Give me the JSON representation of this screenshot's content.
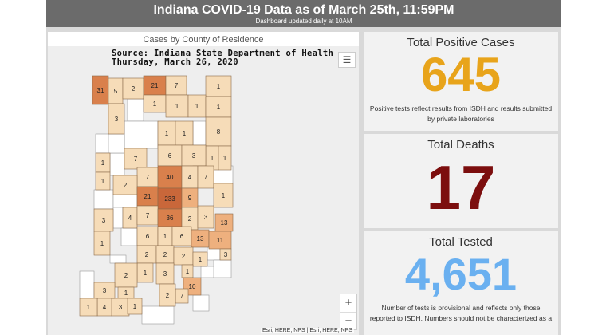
{
  "header": {
    "title": "Indiana COVID-19 Data as of March 25th, 11:59PM",
    "subtitle": "Dashboard updated daily at 10AM"
  },
  "map": {
    "title": "Cases by County of Residence",
    "source_line1": "Source: Indiana State Department of Health",
    "source_line2": "Thursday, March 26, 2020",
    "attribution": "Esri, HERE, NPS | Esri, HERE, NPS",
    "zoom_in": "+",
    "zoom_out": "−",
    "list_icon": "☰",
    "county_labels": [
      {
        "id": "lake",
        "value": "31"
      },
      {
        "id": "porter",
        "value": "5"
      },
      {
        "id": "laporte",
        "value": "2"
      },
      {
        "id": "st-joseph",
        "value": "21"
      },
      {
        "id": "elkhart",
        "value": "7"
      },
      {
        "id": "steuben",
        "value": "1"
      },
      {
        "id": "kosciusko",
        "value": "1"
      },
      {
        "id": "marshall",
        "value": "1"
      },
      {
        "id": "noble",
        "value": "1"
      },
      {
        "id": "dekalb",
        "value": "1"
      },
      {
        "id": "allen",
        "value": "8"
      },
      {
        "id": "jasper",
        "value": "3"
      },
      {
        "id": "adams",
        "value": "1"
      },
      {
        "id": "wells",
        "value": "1"
      },
      {
        "id": "cass",
        "value": "1"
      },
      {
        "id": "miami",
        "value": "1"
      },
      {
        "id": "howard",
        "value": "6"
      },
      {
        "id": "delaware",
        "value": "3"
      },
      {
        "id": "jay",
        "value": "1"
      },
      {
        "id": "tippecanoe",
        "value": "7"
      },
      {
        "id": "benton",
        "value": "1"
      },
      {
        "id": "warren",
        "value": "1"
      },
      {
        "id": "boone",
        "value": "7"
      },
      {
        "id": "montgomery",
        "value": "2"
      },
      {
        "id": "hamilton",
        "value": "40"
      },
      {
        "id": "madison",
        "value": "4"
      },
      {
        "id": "henry",
        "value": "7"
      },
      {
        "id": "hendricks",
        "value": "21"
      },
      {
        "id": "marion",
        "value": "233"
      },
      {
        "id": "hancock",
        "value": "9"
      },
      {
        "id": "wayne",
        "value": "1"
      },
      {
        "id": "vigo",
        "value": "3"
      },
      {
        "id": "putnam",
        "value": "4"
      },
      {
        "id": "morgan",
        "value": "7"
      },
      {
        "id": "johnson",
        "value": "36"
      },
      {
        "id": "shelby",
        "value": "2"
      },
      {
        "id": "rush",
        "value": "3"
      },
      {
        "id": "franklin",
        "value": "13"
      },
      {
        "id": "owen",
        "value": "6"
      },
      {
        "id": "monroe",
        "value": "1"
      },
      {
        "id": "bartholomew",
        "value": "6"
      },
      {
        "id": "decatur",
        "value": "13"
      },
      {
        "id": "dearborn",
        "value": "11"
      },
      {
        "id": "ohio",
        "value": "3"
      },
      {
        "id": "sullivan",
        "value": "1"
      },
      {
        "id": "greene",
        "value": "2"
      },
      {
        "id": "lawrence",
        "value": "2"
      },
      {
        "id": "jackson",
        "value": "2"
      },
      {
        "id": "jennings",
        "value": "1"
      },
      {
        "id": "daviess",
        "value": "1"
      },
      {
        "id": "orange",
        "value": "3"
      },
      {
        "id": "scott",
        "value": "1"
      },
      {
        "id": "clark",
        "value": "10"
      },
      {
        "id": "knox",
        "value": "2"
      },
      {
        "id": "floyd",
        "value": "7"
      },
      {
        "id": "gibson",
        "value": "3"
      },
      {
        "id": "vanderburgh",
        "value": "4"
      },
      {
        "id": "warrick",
        "value": "3"
      },
      {
        "id": "spencer",
        "value": "1"
      },
      {
        "id": "posey",
        "value": "1"
      },
      {
        "id": "harrison",
        "value": "2"
      },
      {
        "id": "pike",
        "value": "1"
      }
    ]
  },
  "stats": {
    "positive": {
      "label": "Total Positive Cases",
      "value": "645",
      "note": "Positive tests reflect results from ISDH and results submitted by private laboratories"
    },
    "deaths": {
      "label": "Total Deaths",
      "value": "17"
    },
    "tested": {
      "label": "Total Tested",
      "value": "4,651",
      "note": "Number of tests is provisional and reflects only those reported to ISDH. Numbers should not be characterized as a"
    }
  },
  "colors": {
    "header_bg": "#6b6b6b",
    "positive": "#e8a41b",
    "deaths": "#7c0e0e",
    "tested": "#6ab0f0",
    "county_low": "#f6dcb8",
    "county_mid": "#eeb07e",
    "county_high": "#d9804c",
    "county_top": "#c9673a",
    "county_none": "#ffffff"
  }
}
